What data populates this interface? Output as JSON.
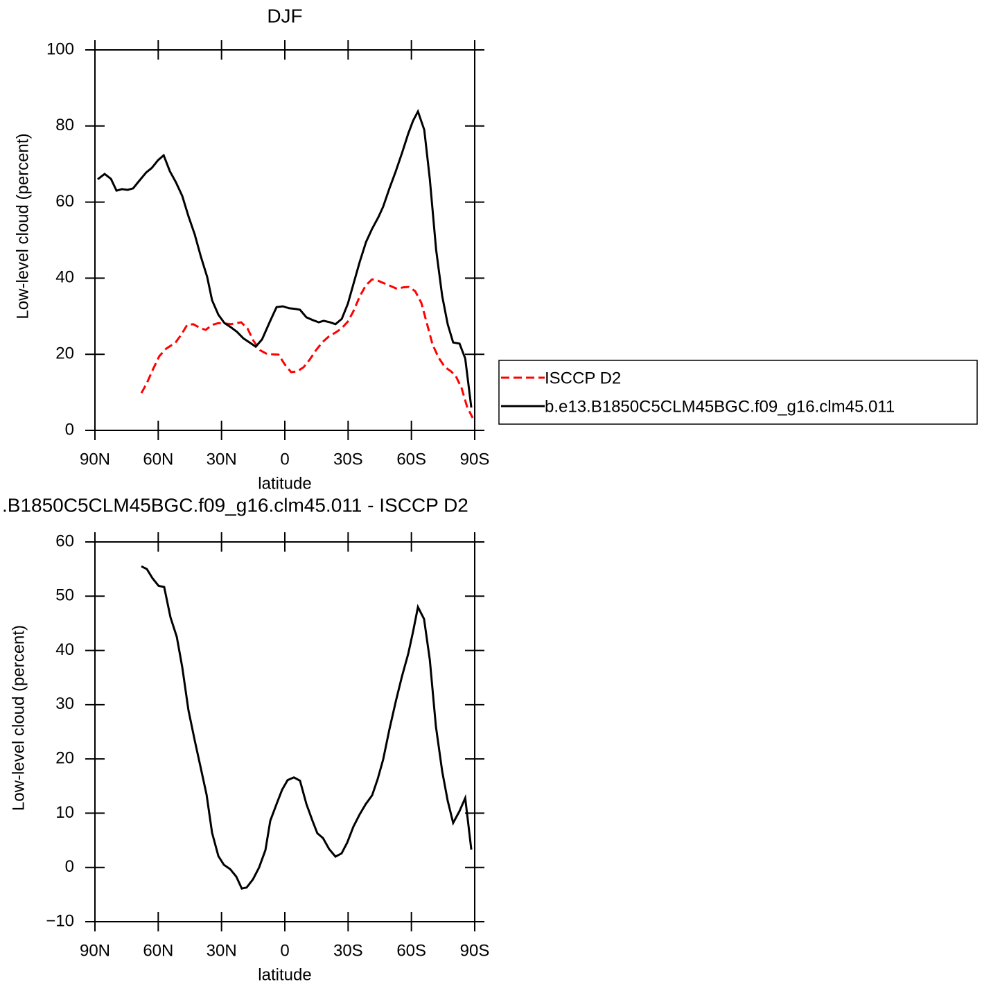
{
  "chart_data": [
    {
      "type": "line",
      "title": "DJF",
      "xlabel": "latitude",
      "ylabel": "Low-level cloud (percent)",
      "xlim": [
        90,
        -90
      ],
      "ylim": [
        0,
        100
      ],
      "xticks": [
        {
          "value": 90,
          "label": "90N"
        },
        {
          "value": 60,
          "label": "60N"
        },
        {
          "value": 30,
          "label": "30N"
        },
        0,
        {
          "value": -30,
          "label": "30S"
        },
        {
          "value": -60,
          "label": "60S"
        },
        {
          "value": -90,
          "label": "90S"
        }
      ],
      "yticks": [
        0,
        20,
        40,
        60,
        80,
        100
      ],
      "series": [
        {
          "name": "ISCCP D2",
          "color": "#ff0000",
          "line_style": "dashed",
          "x": [
            68.0,
            65.4,
            62.7,
            59.5,
            56.2,
            51.9,
            48.9,
            46.3,
            43.4,
            40.4,
            37.5,
            34.5,
            31.5,
            28.6,
            25.6,
            22.7,
            20.7,
            17.7,
            14.8,
            11.8,
            8.9,
            5.9,
            3.0,
            0.0,
            -3.0,
            -5.9,
            -8.9,
            -11.8,
            -14.8,
            -17.7,
            -20.7,
            -24.0,
            -26.9,
            -29.9,
            -32.5,
            -35.5,
            -38.4,
            -41.4,
            -44.3,
            -47.3,
            -50.3,
            -53.2,
            -56.2,
            -58.8,
            -61.8,
            -64.7,
            -67.3,
            -70.0,
            -72.9,
            -75.9,
            -78.8,
            -81.1,
            -83.8,
            -86.4,
            -89.0
          ],
          "values": [
            9.8,
            12.4,
            15.8,
            19.5,
            21.5,
            23,
            25.3,
            27.7,
            27.9,
            27,
            26.4,
            27.7,
            28.2,
            28.1,
            27.9,
            28.2,
            28.4,
            26.8,
            23.5,
            21.1,
            20.2,
            20,
            19.9,
            17.3,
            15.3,
            15.5,
            16.6,
            18.6,
            21.1,
            23.1,
            24.6,
            25.7,
            26.8,
            28.6,
            31.3,
            35.2,
            38.1,
            39.7,
            39.3,
            38.6,
            37.9,
            37.2,
            37.6,
            37.7,
            36.6,
            33.5,
            28.2,
            22.6,
            19.1,
            16.6,
            15.5,
            14.2,
            11.1,
            6.2,
            3.3
          ]
        },
        {
          "name": "b.e13.B1850C5CLM45BGC.f09_g16.clm45.011",
          "color": "#000000",
          "line_style": "solid",
          "x": [
            88.7,
            85.4,
            82.4,
            79.8,
            77.2,
            74.5,
            71.9,
            69.3,
            65.7,
            63.0,
            60.1,
            57.4,
            54.5,
            51.6,
            48.6,
            45.7,
            42.7,
            39.8,
            36.8,
            34.5,
            31.5,
            28.6,
            25.6,
            22.7,
            19.7,
            16.7,
            13.8,
            10.8,
            6.9,
            3.9,
            1.0,
            -2.0,
            -5.3,
            -7.2,
            -10.2,
            -13.2,
            -16.1,
            -18.4,
            -21.4,
            -24.0,
            -27.0,
            -29.9,
            -32.5,
            -35.5,
            -38.5,
            -41.4,
            -44.4,
            -46.6,
            -49.6,
            -52.6,
            -55.6,
            -58.5,
            -60.8,
            -63.1,
            -66.1,
            -68.7,
            -71.7,
            -74.6,
            -77.2,
            -79.8,
            -82.8,
            -85.5,
            -88.4
          ],
          "values": [
            66,
            67.4,
            66.1,
            63,
            63.4,
            63.2,
            63.6,
            65.4,
            67.8,
            69,
            71,
            72.3,
            68.1,
            65.2,
            61.6,
            56.3,
            51.5,
            45.7,
            40.3,
            34.2,
            30.4,
            28.2,
            27.1,
            25.9,
            24.2,
            23.1,
            22,
            23.9,
            28.8,
            32.4,
            32.6,
            32.1,
            31.9,
            31.7,
            29.7,
            29,
            28.4,
            28.8,
            28.4,
            27.9,
            29.3,
            33.3,
            38.4,
            44.3,
            49.5,
            53,
            56.1,
            58.8,
            63.6,
            68.1,
            73,
            78,
            81.4,
            83.8,
            79,
            66.1,
            47.5,
            35.3,
            27.9,
            23.1,
            22.8,
            18.9,
            6
          ]
        }
      ]
    },
    {
      "type": "line",
      "title": ".B1850C5CLM45BGC.f09_g16.clm45.011 - ISCCP D2",
      "xlabel": "latitude",
      "ylabel": "Low-level cloud (percent)",
      "xlim": [
        90,
        -90
      ],
      "ylim": [
        -10,
        60
      ],
      "xticks": [
        {
          "value": 90,
          "label": "90N"
        },
        {
          "value": 60,
          "label": "60N"
        },
        {
          "value": 30,
          "label": "30N"
        },
        0,
        {
          "value": -30,
          "label": "30S"
        },
        {
          "value": -60,
          "label": "60S"
        },
        {
          "value": -90,
          "label": "90S"
        }
      ],
      "yticks": [
        {
          "value": -10,
          "label": "−10"
        },
        0,
        10,
        20,
        30,
        40,
        50,
        60
      ],
      "series": [
        {
          "color": "#000000",
          "line_style": "solid",
          "x": [
            68.0,
            65.4,
            62.7,
            59.8,
            57.2,
            54.2,
            51.2,
            48.6,
            45.7,
            42.7,
            39.7,
            37.1,
            34.5,
            31.5,
            28.9,
            25.9,
            23.0,
            20.4,
            18.1,
            15.1,
            12.2,
            9.2,
            6.9,
            3.9,
            1.3,
            -1.3,
            -4.3,
            -7.2,
            -10.2,
            -13.1,
            -15.4,
            -18.1,
            -21.0,
            -24.0,
            -26.9,
            -29.6,
            -32.5,
            -35.5,
            -38.4,
            -41.4,
            -44.0,
            -46.6,
            -49.6,
            -52.6,
            -55.5,
            -58.5,
            -60.8,
            -63.1,
            -66.0,
            -68.7,
            -71.6,
            -74.6,
            -77.2,
            -79.8,
            -82.8,
            -85.5,
            -88.4
          ],
          "values": [
            55.5,
            55,
            53.3,
            51.9,
            51.7,
            46.1,
            42.5,
            36.9,
            29,
            23.4,
            18.1,
            13.4,
            6.4,
            2.1,
            0.5,
            -0.3,
            -1.7,
            -3.9,
            -3.7,
            -2.2,
            0,
            3.2,
            8.6,
            11.7,
            14.3,
            16.1,
            16.6,
            16,
            11.7,
            8.6,
            6.3,
            5.4,
            3.4,
            2,
            2.6,
            4.6,
            7.5,
            9.8,
            11.7,
            13.3,
            16.3,
            19.9,
            25.5,
            30.6,
            35.2,
            39.4,
            43.5,
            48,
            45.8,
            38.3,
            26,
            17.7,
            12.3,
            8.2,
            10.4,
            12.8,
            3.3
          ]
        }
      ]
    }
  ]
}
